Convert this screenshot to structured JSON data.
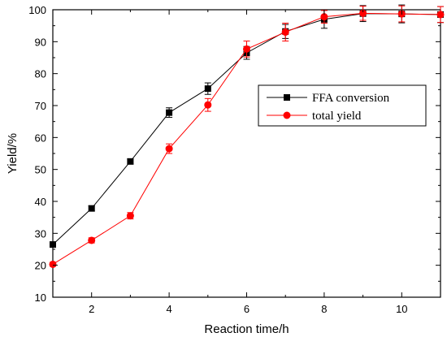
{
  "chart_data": {
    "type": "line",
    "xlabel": "Reaction time/h",
    "ylabel": "Yield/%",
    "xlim": [
      1,
      11
    ],
    "ylim": [
      10,
      100
    ],
    "xticks": [
      2,
      4,
      6,
      8,
      10
    ],
    "yticks": [
      10,
      20,
      30,
      40,
      50,
      60,
      70,
      80,
      90,
      100
    ],
    "grid": false,
    "legend_position": "right",
    "series": [
      {
        "name": "FFA conversion",
        "color": "#000000",
        "marker": "square",
        "x": [
          1,
          2,
          3,
          4,
          5,
          6,
          7,
          8,
          9,
          10,
          11
        ],
        "y": [
          26.5,
          37.8,
          52.5,
          67.8,
          75.3,
          86.5,
          93.2,
          97.0,
          98.8,
          98.7,
          98.5
        ],
        "err": [
          0.8,
          0.8,
          0.8,
          1.5,
          1.8,
          2.0,
          2.2,
          2.8,
          2.5,
          2.8,
          2.5
        ]
      },
      {
        "name": "total yield",
        "color": "#ff0000",
        "marker": "circle",
        "x": [
          1,
          2,
          3,
          4,
          5,
          6,
          7,
          8,
          9,
          10,
          11
        ],
        "y": [
          20.3,
          27.8,
          35.5,
          56.5,
          70.2,
          87.7,
          93.0,
          97.8,
          98.9,
          98.7,
          98.5
        ],
        "err": [
          0.6,
          0.8,
          1.0,
          1.5,
          2.0,
          2.5,
          2.8,
          2.0,
          2.2,
          2.5,
          2.5
        ]
      }
    ]
  }
}
